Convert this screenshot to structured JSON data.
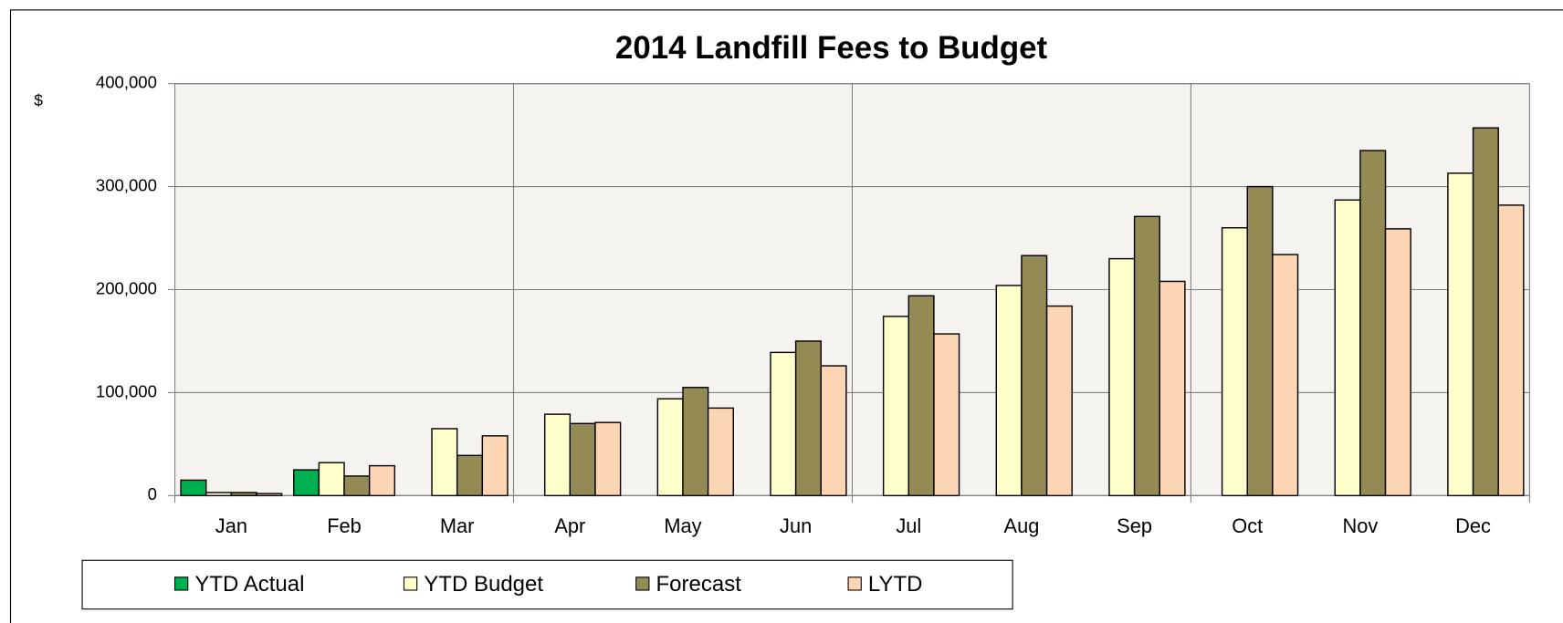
{
  "chart_data": {
    "type": "bar",
    "title": "2014 Landfill Fees to Budget",
    "y_label": "$",
    "categories": [
      "Jan",
      "Feb",
      "Mar",
      "Apr",
      "May",
      "Jun",
      "Jul",
      "Aug",
      "Sep",
      "Oct",
      "Nov",
      "Dec"
    ],
    "series": [
      {
        "name": "YTD Actual",
        "color": "#00b050",
        "values": [
          15000,
          25000,
          null,
          null,
          null,
          null,
          null,
          null,
          null,
          null,
          null,
          null
        ]
      },
      {
        "name": "YTD Budget",
        "color": "#ffffcc",
        "values": [
          3000,
          32000,
          65000,
          79000,
          94000,
          139000,
          174000,
          204000,
          230000,
          260000,
          287000,
          313000
        ]
      },
      {
        "name": "Forecast",
        "color": "#948a54",
        "values": [
          3000,
          19000,
          39000,
          70000,
          105000,
          150000,
          194000,
          233000,
          271000,
          300000,
          335000,
          357000
        ]
      },
      {
        "name": "LYTD",
        "color": "#fcd5b4",
        "values": [
          2000,
          29000,
          58000,
          71000,
          85000,
          126000,
          157000,
          184000,
          208000,
          234000,
          259000,
          282000
        ]
      }
    ],
    "ylim": [
      0,
      400000
    ],
    "yticks": [
      0,
      {
        "value": 100000,
        "label": "100,000"
      },
      {
        "value": 200000,
        "label": "200,000"
      },
      {
        "value": 300000,
        "label": "300,000"
      },
      {
        "value": 400000,
        "label": "400,000"
      }
    ],
    "grid": true,
    "legend": "bottom"
  }
}
